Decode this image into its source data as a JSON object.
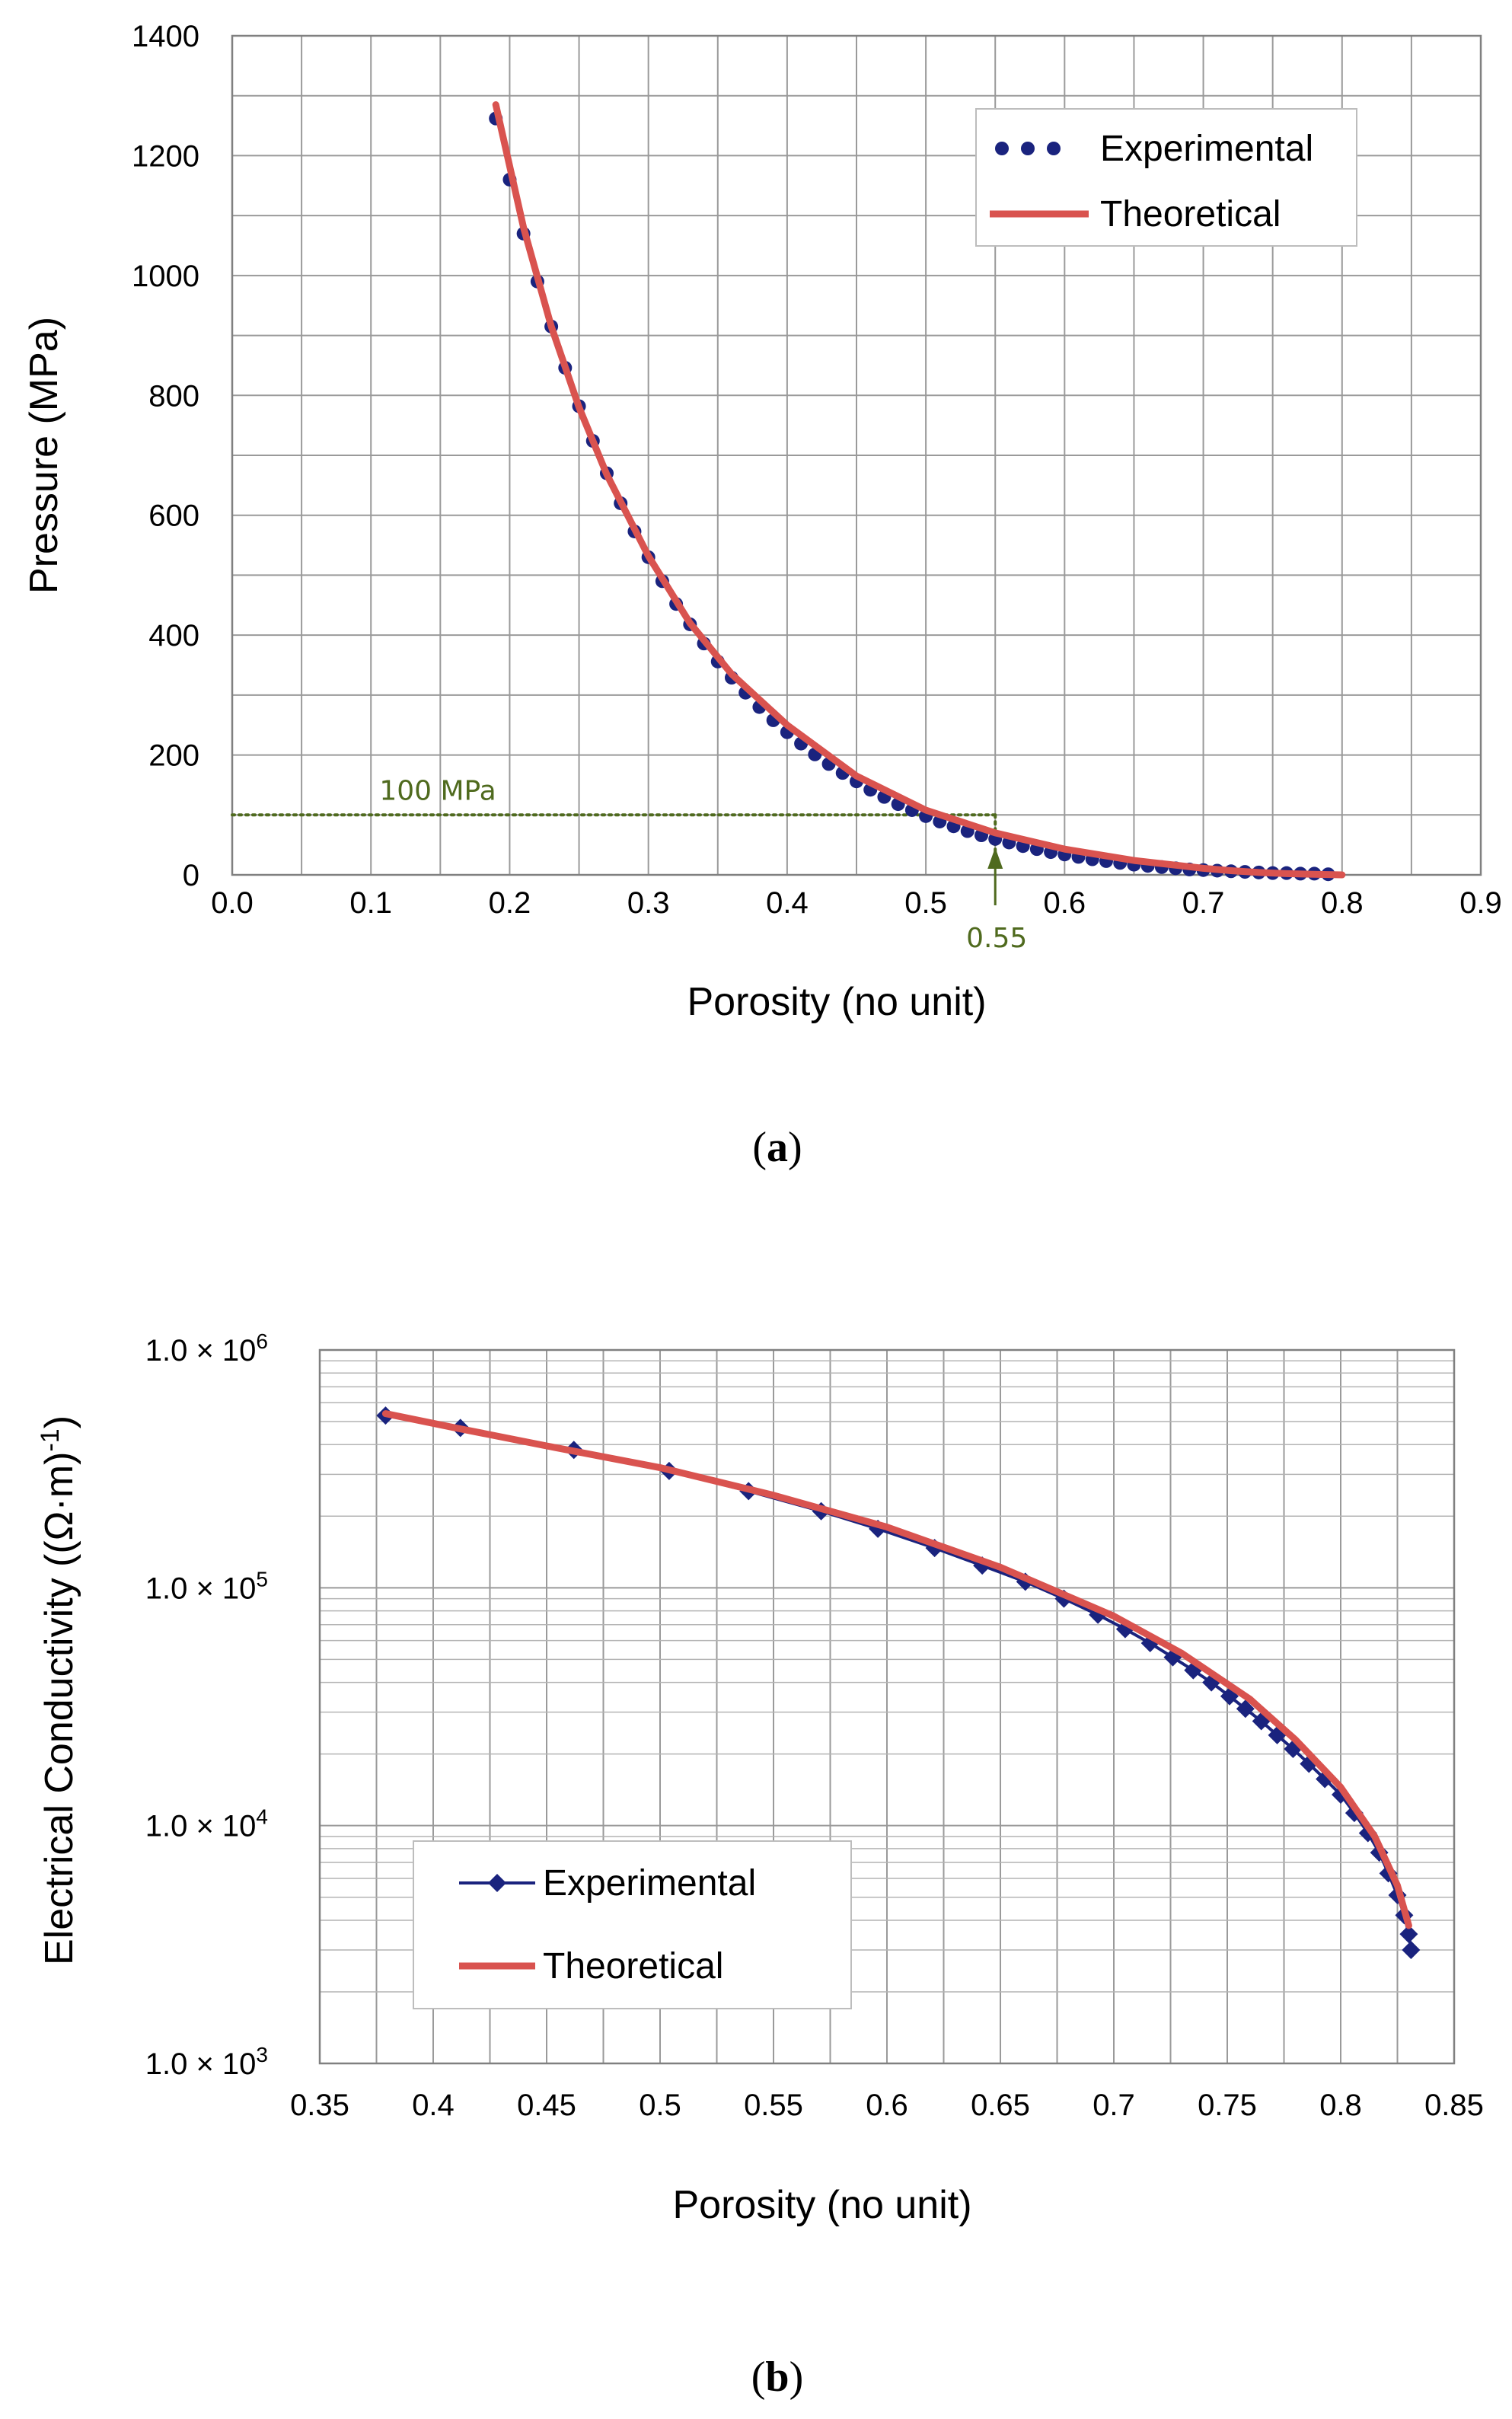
{
  "chart_data": [
    {
      "id": "a",
      "type": "line",
      "caption_letter": "a",
      "xlabel": "Porosity  (no unit)",
      "ylabel": "Pressure (MPa)",
      "xlim": [
        0.0,
        0.9
      ],
      "ylim": [
        0,
        1400
      ],
      "x_ticks": [
        0.0,
        0.1,
        0.2,
        0.3,
        0.4,
        0.5,
        0.6,
        0.7,
        0.8,
        0.9
      ],
      "x_tick_labels": [
        "0.0",
        "0.1",
        "0.2",
        "0.3",
        "0.4",
        "0.5",
        "0.6",
        "0.7",
        "0.8",
        "0.9"
      ],
      "x_grid_step": 0.05,
      "y_ticks": [
        0,
        200,
        400,
        600,
        800,
        1000,
        1200,
        1400
      ],
      "y_tick_labels": [
        "0",
        "200",
        "400",
        "600",
        "800",
        "1000",
        "1200",
        "1400"
      ],
      "y_grid_step": 100,
      "legend_position": "top-right",
      "series": [
        {
          "name": "Experimental",
          "style": "dots",
          "color": "#1a237e",
          "x": [
            0.19,
            0.2,
            0.21,
            0.22,
            0.23,
            0.24,
            0.25,
            0.26,
            0.27,
            0.28,
            0.29,
            0.3,
            0.31,
            0.32,
            0.33,
            0.34,
            0.35,
            0.36,
            0.37,
            0.38,
            0.39,
            0.4,
            0.41,
            0.42,
            0.43,
            0.44,
            0.45,
            0.46,
            0.47,
            0.48,
            0.49,
            0.5,
            0.51,
            0.52,
            0.53,
            0.54,
            0.55,
            0.56,
            0.57,
            0.58,
            0.59,
            0.6,
            0.61,
            0.62,
            0.63,
            0.64,
            0.65,
            0.66,
            0.67,
            0.68,
            0.69,
            0.7,
            0.71,
            0.72,
            0.73,
            0.74,
            0.75,
            0.76,
            0.77,
            0.78,
            0.79
          ],
          "y": [
            1262,
            1160,
            1070,
            990,
            915,
            846,
            782,
            724,
            670,
            620,
            573,
            530,
            490,
            452,
            418,
            386,
            356,
            329,
            304,
            280,
            258,
            238,
            219,
            201,
            185,
            170,
            156,
            142,
            130,
            118,
            108,
            98,
            89,
            81,
            73,
            66,
            60,
            54,
            48,
            43,
            38,
            34,
            30,
            26,
            23,
            20,
            17,
            15,
            13,
            11,
            9,
            8,
            7,
            6,
            5,
            4,
            3,
            3,
            2,
            2,
            1
          ]
        },
        {
          "name": "Theoretical",
          "style": "line",
          "color": "#d9534f",
          "x": [
            0.19,
            0.21,
            0.23,
            0.25,
            0.27,
            0.3,
            0.33,
            0.36,
            0.4,
            0.45,
            0.5,
            0.55,
            0.6,
            0.65,
            0.7,
            0.72,
            0.74,
            0.76,
            0.78,
            0.8
          ],
          "y": [
            1285,
            1080,
            915,
            780,
            668,
            532,
            420,
            335,
            250,
            165,
            108,
            70,
            43,
            24,
            11,
            7,
            4,
            2,
            1,
            0
          ]
        }
      ],
      "annotations": [
        {
          "text": "100 MPa",
          "x": 0.105,
          "y": 100
        },
        {
          "text": "0.55",
          "x": 0.55,
          "y": 0
        }
      ],
      "reference_lines": [
        {
          "type": "horizontal",
          "y": 100,
          "from_x": 0.0,
          "to_x": 0.55
        },
        {
          "type": "vertical_arrow",
          "x": 0.55,
          "from_y": 100,
          "to_y": 0
        }
      ]
    },
    {
      "id": "b",
      "type": "line",
      "caption_letter": "b",
      "xlabel": "Porosity  (no unit)",
      "ylabel": "Electrical Conductivity  ((Ω·m)",
      "ylabel_superscript": "-1",
      "ylabel_close": ")",
      "yscale": "log",
      "xlim": [
        0.35,
        0.85
      ],
      "ylim": [
        1000,
        1000000
      ],
      "x_ticks": [
        0.35,
        0.4,
        0.45,
        0.5,
        0.55,
        0.6,
        0.65,
        0.7,
        0.75,
        0.8,
        0.85
      ],
      "x_tick_labels": [
        "0.35",
        "0.4",
        "0.45",
        "0.5",
        "0.55",
        "0.6",
        "0.65",
        "0.7",
        "0.75",
        "0.8",
        "0.85"
      ],
      "x_grid_step": 0.025,
      "y_ticks": [
        1000,
        10000,
        100000,
        1000000
      ],
      "y_tick_base": [
        "1.0 × 10",
        "1.0 × 10",
        "1.0 × 10",
        "1.0 × 10"
      ],
      "y_tick_exp": [
        "3",
        "4",
        "5",
        "6"
      ],
      "legend_position": "bottom-left",
      "series": [
        {
          "name": "Experimental",
          "style": "line-diamond",
          "color": "#1a237e",
          "x": [
            0.379,
            0.412,
            0.462,
            0.504,
            0.539,
            0.571,
            0.596,
            0.621,
            0.642,
            0.661,
            0.678,
            0.693,
            0.705,
            0.716,
            0.726,
            0.735,
            0.743,
            0.751,
            0.758,
            0.765,
            0.772,
            0.779,
            0.786,
            0.793,
            0.8,
            0.806,
            0.812,
            0.817,
            0.821,
            0.825,
            0.828,
            0.83,
            0.831
          ],
          "y": [
            530000,
            470000,
            380000,
            310000,
            255000,
            210000,
            177000,
            147000,
            124000,
            106000,
            90000,
            77000,
            67000,
            58500,
            51000,
            45000,
            40000,
            35000,
            31000,
            27500,
            24000,
            21000,
            18200,
            15700,
            13500,
            11300,
            9300,
            7700,
            6300,
            5100,
            4200,
            3500,
            3000
          ]
        },
        {
          "name": "Theoretical",
          "style": "line",
          "color": "#d9534f",
          "x": [
            0.379,
            0.41,
            0.45,
            0.5,
            0.55,
            0.6,
            0.65,
            0.7,
            0.73,
            0.76,
            0.78,
            0.8,
            0.815,
            0.825,
            0.83
          ],
          "y": [
            540000,
            470000,
            395000,
            320000,
            245000,
            180000,
            122000,
            76000,
            53000,
            34000,
            23000,
            14500,
            9000,
            5600,
            3800
          ]
        }
      ]
    }
  ]
}
